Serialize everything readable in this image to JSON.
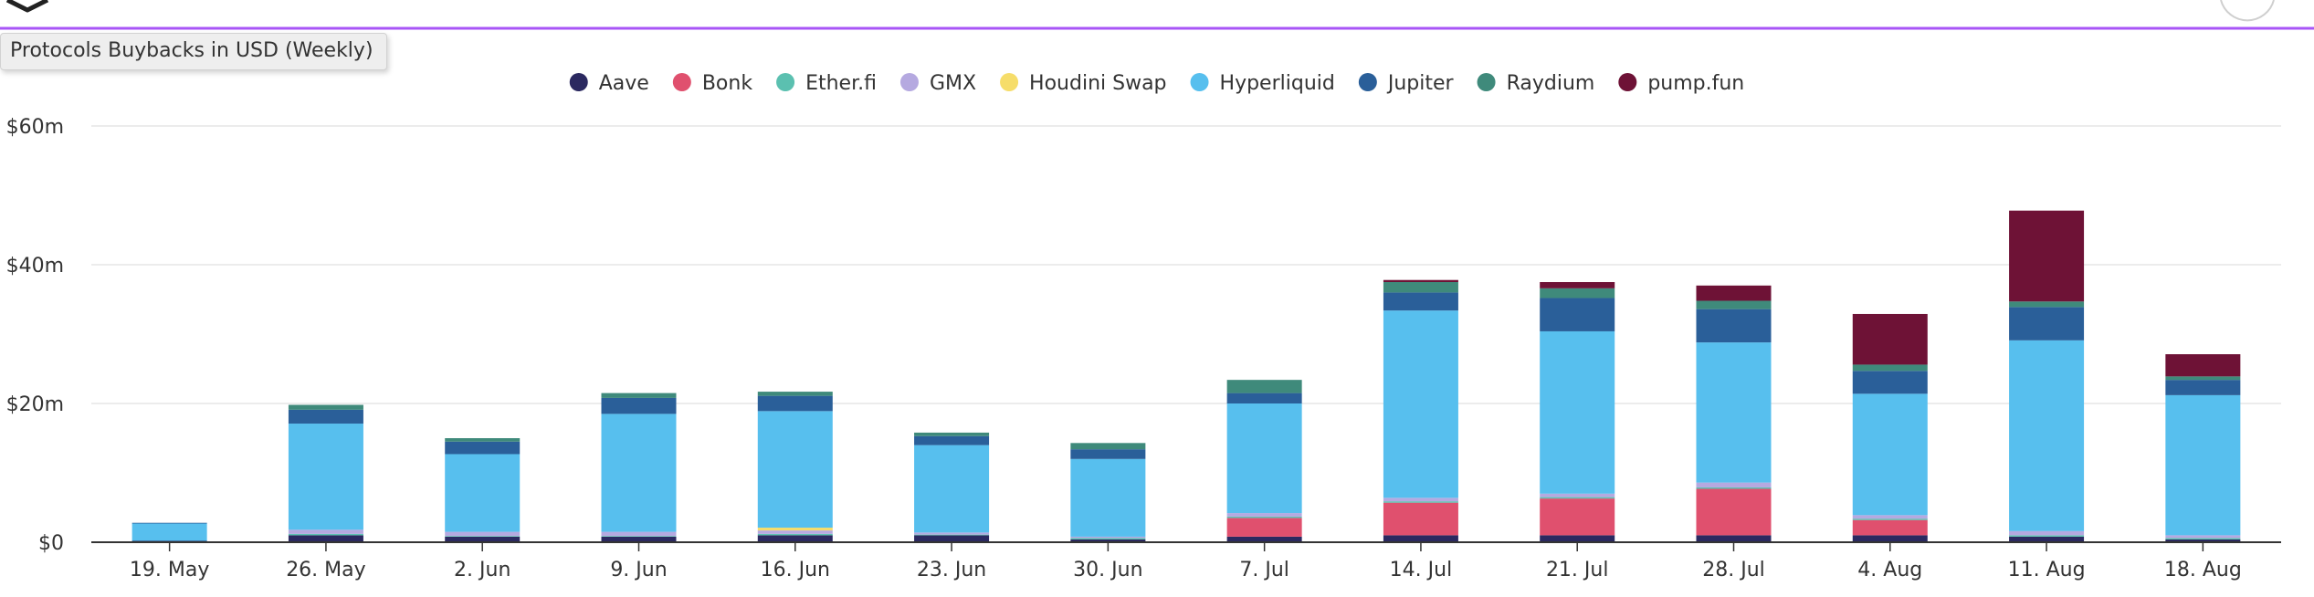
{
  "chart_data": {
    "type": "bar",
    "stacked": true,
    "title": "Protocols Buybacks in USD (Weekly)",
    "legend_position": "top-center",
    "grid": true,
    "ylim": [
      0,
      60
    ],
    "yticks": [
      {
        "value": 0,
        "label": "$0"
      },
      {
        "value": 20,
        "label": "$20m"
      },
      {
        "value": 40,
        "label": "$40m"
      },
      {
        "value": 60,
        "label": "$60m"
      }
    ],
    "categories": [
      "19. May",
      "26. May",
      "2. Jun",
      "9. Jun",
      "16. Jun",
      "23. Jun",
      "30. Jun",
      "7. Jul",
      "14. Jul",
      "21. Jul",
      "28. Jul",
      "4. Aug",
      "11. Aug",
      "18. Aug"
    ],
    "series": [
      {
        "name": "Aave",
        "color": "#2b2960",
        "values": [
          0.2,
          1.0,
          0.8,
          0.8,
          1.0,
          1.0,
          0.4,
          0.8,
          1.0,
          1.0,
          1.0,
          1.0,
          0.8,
          0.4
        ]
      },
      {
        "name": "Bonk",
        "color": "#e0506e",
        "values": [
          0,
          0,
          0,
          0,
          0,
          0,
          0,
          2.7,
          4.7,
          5.3,
          6.7,
          2.2,
          0,
          0
        ]
      },
      {
        "name": "Ether.fi",
        "color": "#5bc0b0",
        "values": [
          0,
          0.2,
          0.1,
          0.1,
          0.2,
          0.1,
          0.2,
          0.2,
          0.2,
          0.2,
          0.2,
          0.2,
          0.2,
          0.2
        ]
      },
      {
        "name": "GMX",
        "color": "#b5a9e0",
        "values": [
          0,
          0.6,
          0.6,
          0.6,
          0.5,
          0.3,
          0.2,
          0.5,
          0.5,
          0.5,
          0.7,
          0.5,
          0.6,
          0.4
        ]
      },
      {
        "name": "Houdini Swap",
        "color": "#f6dd6a",
        "values": [
          0,
          0,
          0,
          0,
          0.4,
          0,
          0,
          0,
          0,
          0,
          0,
          0,
          0,
          0
        ]
      },
      {
        "name": "Hyperliquid",
        "color": "#57bfee",
        "values": [
          2.5,
          15.3,
          11.2,
          17.0,
          16.8,
          12.6,
          11.2,
          15.8,
          27.0,
          23.4,
          20.2,
          17.5,
          27.5,
          20.2
        ]
      },
      {
        "name": "Jupiter",
        "color": "#2a5f99",
        "values": [
          0.1,
          2.0,
          1.8,
          2.3,
          2.2,
          1.3,
          1.4,
          1.5,
          2.6,
          4.8,
          4.8,
          3.3,
          4.8,
          2.2
        ]
      },
      {
        "name": "Raydium",
        "color": "#3f8a7b",
        "values": [
          0,
          0.7,
          0.5,
          0.7,
          0.6,
          0.5,
          0.9,
          1.9,
          1.5,
          1.4,
          1.2,
          0.9,
          0.8,
          0.5
        ]
      },
      {
        "name": "pump.fun",
        "color": "#6e1236",
        "values": [
          0,
          0,
          0,
          0,
          0,
          0,
          0,
          0,
          0.3,
          0.9,
          2.2,
          7.3,
          13.1,
          3.2
        ]
      }
    ]
  }
}
